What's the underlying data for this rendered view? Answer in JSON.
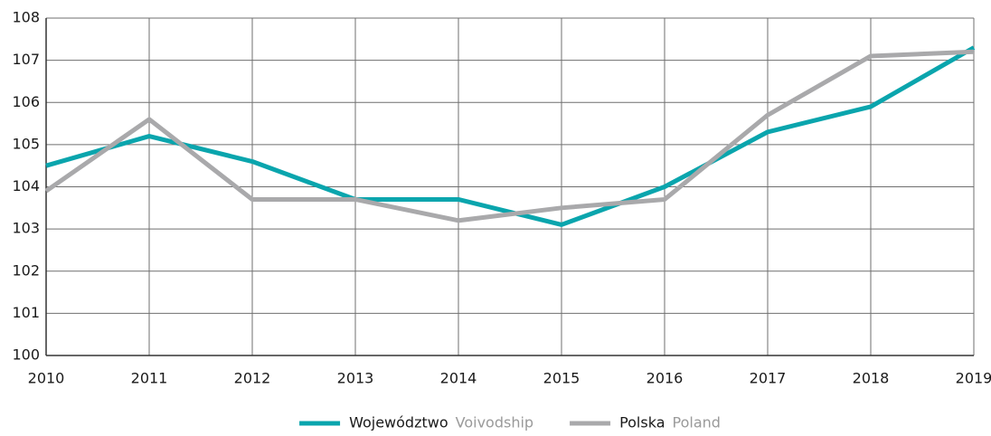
{
  "chart_data": {
    "type": "line",
    "x": [
      2010,
      2011,
      2012,
      2013,
      2014,
      2015,
      2016,
      2017,
      2018,
      2019
    ],
    "xlim": [
      2010,
      2019
    ],
    "xticks": [
      2010,
      2011,
      2012,
      2013,
      2014,
      2015,
      2016,
      2017,
      2018,
      2019
    ],
    "ylim": [
      100,
      108
    ],
    "yticks": [
      100,
      101,
      102,
      103,
      104,
      105,
      106,
      107,
      108
    ],
    "grid": true,
    "legend": "bottom",
    "series": [
      {
        "name": "Województwo",
        "name_en": "Voivodship",
        "color": "#0aa5ad",
        "values": [
          104.5,
          105.2,
          104.6,
          103.7,
          103.7,
          103.1,
          104.0,
          105.3,
          105.9,
          107.3
        ]
      },
      {
        "name": "Polska",
        "name_en": "Poland",
        "color": "#a9a9ab",
        "values": [
          103.9,
          105.6,
          103.7,
          103.7,
          103.2,
          103.5,
          103.7,
          105.7,
          107.1,
          107.2
        ]
      }
    ]
  }
}
